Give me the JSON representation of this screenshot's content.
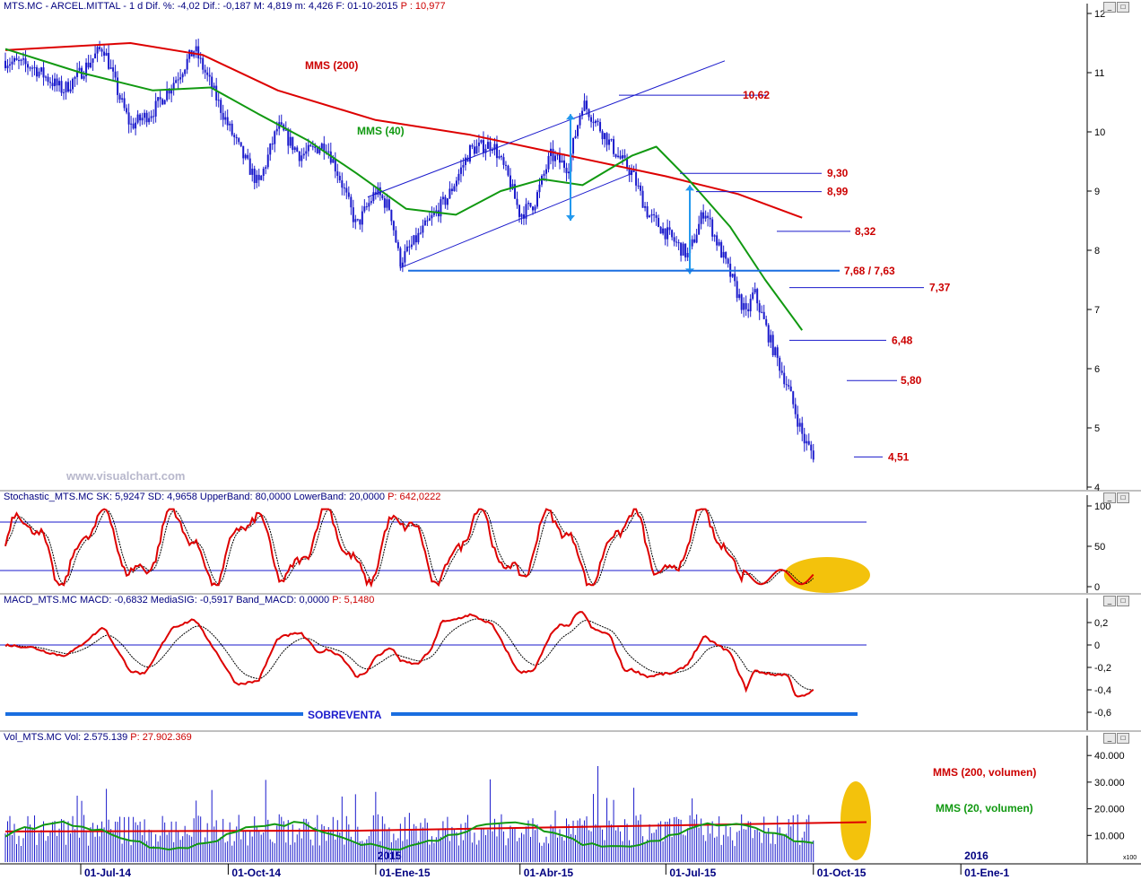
{
  "panels": {
    "price": {
      "header": "MTS.MC - ARCEL.MITTAL - 1 d Dif. %: -4,02 Dif.: -0,187 M: 4,819 m: 4,426 F: 01-10-2015",
      "header_p": "P : 10,977",
      "ma200_label": "MMS (200)",
      "ma40_label": "MMS (40)",
      "neckline_label": "7,68 / 7,63",
      "watermark": "www.visualchart.com",
      "y_ticks": [
        "12",
        "11",
        "10",
        "9",
        "8",
        "7",
        "6",
        "5",
        "4"
      ]
    },
    "stochastic": {
      "header": "Stochastic_MTS.MC SK: 5,9247 SD: 4,9658 UpperBand: 80,0000 LowerBand: 20,0000",
      "header_p": "P: 642,0222",
      "y_ticks": [
        "100",
        "50",
        "0"
      ]
    },
    "macd": {
      "header": "MACD_MTS.MC MACD: -0,6832 MediaSIG: -0,5917 Band_MACD: 0,0000",
      "header_p": "P: 5,1480",
      "oversold_label": "SOBREVENTA",
      "y_ticks": [
        "0,2",
        "0",
        "-0,2",
        "-0,4",
        "-0,6"
      ]
    },
    "volume": {
      "header": "Vol_MTS.MC Vol: 2.575.139",
      "header_p": "P: 27.902.369",
      "ma200_label": "MMS (200, volumen)",
      "ma20_label": "MMS (20, volumen)",
      "y_ticks": [
        "40.000",
        "30.000",
        "20.000",
        "10.000"
      ],
      "multiplier": "x100"
    }
  },
  "x_axis": {
    "labels": [
      "01-Jul-14",
      "01-Oct-14",
      "01-Ene-15",
      "01-Abr-15",
      "01-Jul-15",
      "01-Oct-15",
      "01-Ene-1"
    ],
    "year_labels": [
      "2015",
      "2016"
    ]
  },
  "chart_data": [
    {
      "type": "candlestick",
      "title": "MTS.MC - ARCEL.MITTAL - 1 d",
      "y_range": [
        4,
        12
      ],
      "x_range": [
        "2014-05-15",
        "2015-10-01"
      ],
      "levels": [
        {
          "label": "10,62",
          "value": 10.62
        },
        {
          "label": "9,30",
          "value": 9.3
        },
        {
          "label": "8,99",
          "value": 8.99
        },
        {
          "label": "8,32",
          "value": 8.32
        },
        {
          "label": "7,68 / 7,63",
          "value": 7.655
        },
        {
          "label": "7,37",
          "value": 7.37
        },
        {
          "label": "6,48",
          "value": 6.48
        },
        {
          "label": "5,80",
          "value": 5.8
        },
        {
          "label": "4,51",
          "value": 4.51
        }
      ],
      "price_path": [
        [
          "2014-05-15",
          11.2
        ],
        [
          "2014-06-01",
          11.1
        ],
        [
          "2014-06-20",
          10.7
        ],
        [
          "2014-07-01",
          11.0
        ],
        [
          "2014-07-15",
          11.45
        ],
        [
          "2014-07-25",
          10.6
        ],
        [
          "2014-08-01",
          10.1
        ],
        [
          "2014-08-15",
          10.35
        ],
        [
          "2014-09-01",
          11.0
        ],
        [
          "2014-09-10",
          11.4
        ],
        [
          "2014-09-20",
          10.8
        ],
        [
          "2014-10-01",
          10.1
        ],
        [
          "2014-10-10",
          9.6
        ],
        [
          "2014-10-20",
          9.1
        ],
        [
          "2014-11-01",
          10.1
        ],
        [
          "2014-11-15",
          9.6
        ],
        [
          "2014-12-01",
          9.8
        ],
        [
          "2014-12-10",
          9.2
        ],
        [
          "2014-12-20",
          8.4
        ],
        [
          "2015-01-01",
          9.0
        ],
        [
          "2015-01-10",
          8.7
        ],
        [
          "2015-01-16",
          7.8
        ],
        [
          "2015-02-01",
          8.4
        ],
        [
          "2015-02-15",
          8.9
        ],
        [
          "2015-03-01",
          9.7
        ],
        [
          "2015-03-15",
          9.8
        ],
        [
          "2015-03-25",
          9.2
        ],
        [
          "2015-04-01",
          8.6
        ],
        [
          "2015-04-10",
          8.8
        ],
        [
          "2015-04-20",
          9.6
        ],
        [
          "2015-05-01",
          9.4
        ],
        [
          "2015-05-10",
          10.5
        ],
        [
          "2015-05-20",
          10.1
        ],
        [
          "2015-06-01",
          9.6
        ],
        [
          "2015-06-10",
          9.3
        ],
        [
          "2015-06-20",
          8.6
        ],
        [
          "2015-07-01",
          8.3
        ],
        [
          "2015-07-15",
          7.9
        ],
        [
          "2015-07-25",
          8.7
        ],
        [
          "2015-08-01",
          8.2
        ],
        [
          "2015-08-10",
          7.6
        ],
        [
          "2015-08-20",
          6.9
        ],
        [
          "2015-08-25",
          7.3
        ],
        [
          "2015-09-05",
          6.4
        ],
        [
          "2015-09-15",
          5.7
        ],
        [
          "2015-09-25",
          4.8
        ],
        [
          "2015-10-01",
          4.55
        ]
      ],
      "series": [
        {
          "name": "MMS (200)",
          "color": "#dd0000",
          "values": [
            [
              "2014-05-15",
              11.38
            ],
            [
              "2014-08-01",
              11.5
            ],
            [
              "2014-09-15",
              11.3
            ],
            [
              "2014-11-01",
              10.7
            ],
            [
              "2015-01-01",
              10.2
            ],
            [
              "2015-03-01",
              9.95
            ],
            [
              "2015-05-01",
              9.6
            ],
            [
              "2015-07-01",
              9.25
            ],
            [
              "2015-08-15",
              8.95
            ],
            [
              "2015-09-24",
              8.55
            ]
          ]
        },
        {
          "name": "MMS (40)",
          "color": "#119911",
          "values": [
            [
              "2014-05-15",
              11.4
            ],
            [
              "2014-07-01",
              11.0
            ],
            [
              "2014-08-15",
              10.7
            ],
            [
              "2014-09-20",
              10.75
            ],
            [
              "2014-10-20",
              10.3
            ],
            [
              "2014-11-20",
              9.85
            ],
            [
              "2014-12-20",
              9.3
            ],
            [
              "2015-01-20",
              8.7
            ],
            [
              "2015-02-20",
              8.6
            ],
            [
              "2015-03-20",
              9.0
            ],
            [
              "2015-04-15",
              9.2
            ],
            [
              "2015-05-10",
              9.1
            ],
            [
              "2015-06-10",
              9.6
            ],
            [
              "2015-06-25",
              9.75
            ],
            [
              "2015-07-15",
              9.2
            ],
            [
              "2015-08-10",
              8.4
            ],
            [
              "2015-09-01",
              7.5
            ],
            [
              "2015-09-24",
              6.65
            ]
          ]
        }
      ]
    },
    {
      "type": "line",
      "title": "Stochastic_MTS.MC",
      "y_range": [
        0,
        100
      ],
      "bands": [
        80,
        20
      ],
      "series": [
        {
          "name": "SK",
          "color": "#dd0000"
        },
        {
          "name": "SD",
          "color": "#000000"
        }
      ]
    },
    {
      "type": "line",
      "title": "MACD_MTS.MC",
      "y_range": [
        -0.7,
        0.3
      ],
      "bands": [
        0
      ],
      "series": [
        {
          "name": "MACD",
          "color": "#dd0000"
        },
        {
          "name": "MediaSIG",
          "color": "#000000"
        }
      ]
    },
    {
      "type": "bar",
      "title": "Vol_MTS.MC",
      "y_range": [
        0,
        45000
      ],
      "series": [
        {
          "name": "Vol",
          "color": "#1a1acc"
        },
        {
          "name": "MMS (200, volumen)",
          "color": "#dd0000"
        },
        {
          "name": "MMS (20, volumen)",
          "color": "#119911"
        }
      ]
    }
  ]
}
